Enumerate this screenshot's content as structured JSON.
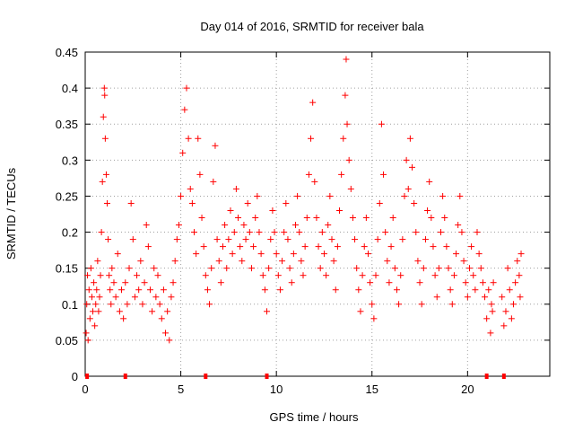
{
  "chart_data": {
    "type": "scatter",
    "title": "Day 014 of 2016, SRMTID for receiver bala",
    "xlabel": "GPS time / hours",
    "ylabel": "SRMTID / TECUs",
    "xlim": [
      0,
      24.3
    ],
    "ylim": [
      0,
      0.45
    ],
    "grid": true,
    "marker": "+",
    "marker_color": "#ff0000",
    "x_ticks": [
      0,
      5,
      10,
      15,
      20
    ],
    "x_tick_labels": [
      "0",
      "5",
      "10",
      "15",
      "20"
    ],
    "y_ticks": [
      0,
      0.05,
      0.1,
      0.15,
      0.2,
      0.25,
      0.3,
      0.35,
      0.4,
      0.45
    ],
    "y_tick_labels": [
      "0",
      "0.05",
      "0.1",
      "0.15",
      "0.2",
      "0.25",
      "0.3",
      "0.35",
      "0.4",
      "0.45"
    ],
    "series": [
      {
        "name": "SRMTID",
        "points": [
          [
            0.05,
            0.06
          ],
          [
            0.08,
            0.1
          ],
          [
            0.12,
            0.14
          ],
          [
            0.15,
            0.05
          ],
          [
            0.2,
            0.12
          ],
          [
            0.25,
            0.08
          ],
          [
            0.3,
            0.15
          ],
          [
            0.35,
            0.11
          ],
          [
            0.4,
            0.09
          ],
          [
            0.45,
            0.13
          ],
          [
            0.5,
            0.07
          ],
          [
            0.55,
            0.1
          ],
          [
            0.6,
            0.12
          ],
          [
            0.65,
            0.16
          ],
          [
            0.7,
            0.09
          ],
          [
            0.75,
            0.11
          ],
          [
            0.8,
            0.14
          ],
          [
            0.85,
            0.2
          ],
          [
            0.9,
            0.27
          ],
          [
            0.95,
            0.36
          ],
          [
            1.0,
            0.4
          ],
          [
            1.02,
            0.39
          ],
          [
            1.05,
            0.33
          ],
          [
            1.1,
            0.28
          ],
          [
            1.15,
            0.24
          ],
          [
            1.2,
            0.19
          ],
          [
            1.25,
            0.14
          ],
          [
            1.3,
            0.12
          ],
          [
            1.35,
            0.1
          ],
          [
            1.4,
            0.15
          ],
          [
            1.5,
            0.13
          ],
          [
            1.6,
            0.11
          ],
          [
            1.7,
            0.17
          ],
          [
            1.8,
            0.09
          ],
          [
            1.9,
            0.12
          ],
          [
            2.0,
            0.08
          ],
          [
            2.1,
            0.13
          ],
          [
            2.2,
            0.1
          ],
          [
            2.3,
            0.15
          ],
          [
            2.4,
            0.24
          ],
          [
            2.5,
            0.19
          ],
          [
            2.6,
            0.11
          ],
          [
            2.7,
            0.14
          ],
          [
            2.8,
            0.12
          ],
          [
            2.9,
            0.16
          ],
          [
            3.0,
            0.1
          ],
          [
            3.1,
            0.13
          ],
          [
            3.2,
            0.21
          ],
          [
            3.3,
            0.18
          ],
          [
            3.4,
            0.12
          ],
          [
            3.5,
            0.09
          ],
          [
            3.6,
            0.15
          ],
          [
            3.7,
            0.11
          ],
          [
            3.8,
            0.14
          ],
          [
            3.9,
            0.1
          ],
          [
            4.0,
            0.08
          ],
          [
            4.1,
            0.12
          ],
          [
            4.2,
            0.06
          ],
          [
            4.3,
            0.09
          ],
          [
            4.4,
            0.05
          ],
          [
            4.5,
            0.11
          ],
          [
            4.6,
            0.13
          ],
          [
            4.7,
            0.16
          ],
          [
            4.8,
            0.19
          ],
          [
            4.9,
            0.21
          ],
          [
            5.0,
            0.25
          ],
          [
            5.1,
            0.31
          ],
          [
            5.2,
            0.37
          ],
          [
            5.3,
            0.4
          ],
          [
            5.4,
            0.33
          ],
          [
            5.5,
            0.26
          ],
          [
            5.6,
            0.24
          ],
          [
            5.7,
            0.2
          ],
          [
            5.8,
            0.17
          ],
          [
            5.9,
            0.33
          ],
          [
            6.0,
            0.28
          ],
          [
            6.1,
            0.22
          ],
          [
            6.2,
            0.18
          ],
          [
            6.3,
            0.14
          ],
          [
            6.4,
            0.12
          ],
          [
            6.5,
            0.1
          ],
          [
            6.6,
            0.15
          ],
          [
            6.7,
            0.27
          ],
          [
            6.8,
            0.32
          ],
          [
            6.9,
            0.19
          ],
          [
            7.0,
            0.16
          ],
          [
            7.1,
            0.13
          ],
          [
            7.2,
            0.18
          ],
          [
            7.3,
            0.21
          ],
          [
            7.4,
            0.15
          ],
          [
            7.5,
            0.19
          ],
          [
            7.6,
            0.23
          ],
          [
            7.7,
            0.17
          ],
          [
            7.8,
            0.2
          ],
          [
            7.9,
            0.26
          ],
          [
            8.0,
            0.22
          ],
          [
            8.1,
            0.18
          ],
          [
            8.2,
            0.16
          ],
          [
            8.3,
            0.21
          ],
          [
            8.4,
            0.19
          ],
          [
            8.5,
            0.24
          ],
          [
            8.6,
            0.2
          ],
          [
            8.7,
            0.15
          ],
          [
            8.8,
            0.18
          ],
          [
            8.9,
            0.22
          ],
          [
            9.0,
            0.25
          ],
          [
            9.1,
            0.2
          ],
          [
            9.2,
            0.17
          ],
          [
            9.3,
            0.14
          ],
          [
            9.4,
            0.12
          ],
          [
            9.5,
            0.09
          ],
          [
            9.6,
            0.15
          ],
          [
            9.7,
            0.19
          ],
          [
            9.8,
            0.23
          ],
          [
            9.9,
            0.2
          ],
          [
            10.0,
            0.17
          ],
          [
            10.1,
            0.14
          ],
          [
            10.2,
            0.12
          ],
          [
            10.3,
            0.16
          ],
          [
            10.4,
            0.2
          ],
          [
            10.5,
            0.24
          ],
          [
            10.6,
            0.19
          ],
          [
            10.7,
            0.15
          ],
          [
            10.8,
            0.13
          ],
          [
            10.9,
            0.17
          ],
          [
            11.0,
            0.21
          ],
          [
            11.1,
            0.25
          ],
          [
            11.2,
            0.2
          ],
          [
            11.3,
            0.16
          ],
          [
            11.4,
            0.14
          ],
          [
            11.5,
            0.18
          ],
          [
            11.6,
            0.22
          ],
          [
            11.7,
            0.28
          ],
          [
            11.8,
            0.33
          ],
          [
            11.9,
            0.38
          ],
          [
            12.0,
            0.27
          ],
          [
            12.1,
            0.22
          ],
          [
            12.2,
            0.18
          ],
          [
            12.3,
            0.15
          ],
          [
            12.4,
            0.2
          ],
          [
            12.5,
            0.17
          ],
          [
            12.6,
            0.14
          ],
          [
            12.7,
            0.21
          ],
          [
            12.8,
            0.25
          ],
          [
            12.9,
            0.19
          ],
          [
            13.0,
            0.16
          ],
          [
            13.1,
            0.12
          ],
          [
            13.2,
            0.18
          ],
          [
            13.3,
            0.23
          ],
          [
            13.4,
            0.28
          ],
          [
            13.5,
            0.33
          ],
          [
            13.6,
            0.39
          ],
          [
            13.65,
            0.44
          ],
          [
            13.7,
            0.35
          ],
          [
            13.8,
            0.3
          ],
          [
            13.9,
            0.26
          ],
          [
            14.0,
            0.22
          ],
          [
            14.1,
            0.19
          ],
          [
            14.2,
            0.15
          ],
          [
            14.3,
            0.12
          ],
          [
            14.4,
            0.09
          ],
          [
            14.5,
            0.14
          ],
          [
            14.6,
            0.18
          ],
          [
            14.7,
            0.22
          ],
          [
            14.8,
            0.17
          ],
          [
            14.9,
            0.13
          ],
          [
            15.0,
            0.1
          ],
          [
            15.1,
            0.08
          ],
          [
            15.2,
            0.14
          ],
          [
            15.3,
            0.19
          ],
          [
            15.4,
            0.24
          ],
          [
            15.5,
            0.35
          ],
          [
            15.6,
            0.28
          ],
          [
            15.7,
            0.2
          ],
          [
            15.8,
            0.16
          ],
          [
            15.9,
            0.13
          ],
          [
            16.0,
            0.18
          ],
          [
            16.1,
            0.22
          ],
          [
            16.2,
            0.15
          ],
          [
            16.3,
            0.12
          ],
          [
            16.4,
            0.1
          ],
          [
            16.5,
            0.14
          ],
          [
            16.6,
            0.19
          ],
          [
            16.7,
            0.25
          ],
          [
            16.8,
            0.3
          ],
          [
            16.9,
            0.26
          ],
          [
            17.0,
            0.33
          ],
          [
            17.1,
            0.29
          ],
          [
            17.2,
            0.24
          ],
          [
            17.3,
            0.2
          ],
          [
            17.4,
            0.16
          ],
          [
            17.5,
            0.13
          ],
          [
            17.6,
            0.1
          ],
          [
            17.7,
            0.15
          ],
          [
            17.8,
            0.19
          ],
          [
            17.9,
            0.23
          ],
          [
            18.0,
            0.27
          ],
          [
            18.1,
            0.22
          ],
          [
            18.2,
            0.18
          ],
          [
            18.3,
            0.14
          ],
          [
            18.4,
            0.11
          ],
          [
            18.5,
            0.15
          ],
          [
            18.6,
            0.2
          ],
          [
            18.7,
            0.25
          ],
          [
            18.8,
            0.22
          ],
          [
            18.9,
            0.18
          ],
          [
            19.0,
            0.15
          ],
          [
            19.1,
            0.12
          ],
          [
            19.2,
            0.1
          ],
          [
            19.3,
            0.14
          ],
          [
            19.4,
            0.17
          ],
          [
            19.5,
            0.21
          ],
          [
            19.6,
            0.25
          ],
          [
            19.7,
            0.2
          ],
          [
            19.8,
            0.16
          ],
          [
            19.9,
            0.13
          ],
          [
            20.0,
            0.11
          ],
          [
            20.1,
            0.15
          ],
          [
            20.2,
            0.18
          ],
          [
            20.3,
            0.14
          ],
          [
            20.4,
            0.12
          ],
          [
            20.5,
            0.2
          ],
          [
            20.6,
            0.17
          ],
          [
            20.7,
            0.15
          ],
          [
            20.8,
            0.13
          ],
          [
            20.9,
            0.11
          ],
          [
            21.0,
            0.08
          ],
          [
            21.1,
            0.12
          ],
          [
            21.2,
            0.06
          ],
          [
            21.25,
            0.1
          ],
          [
            21.3,
            0.09
          ],
          [
            21.35,
            0.13
          ],
          [
            21.8,
            0.11
          ],
          [
            21.9,
            0.07
          ],
          [
            22.0,
            0.09
          ],
          [
            22.1,
            0.15
          ],
          [
            22.2,
            0.12
          ],
          [
            22.3,
            0.08
          ],
          [
            22.4,
            0.1
          ],
          [
            22.5,
            0.13
          ],
          [
            22.6,
            0.16
          ],
          [
            22.7,
            0.14
          ],
          [
            22.75,
            0.11
          ],
          [
            22.8,
            0.17
          ]
        ]
      }
    ],
    "zero_markers_x": [
      0.1,
      2.1,
      6.3,
      9.5,
      21.0,
      21.9
    ]
  }
}
